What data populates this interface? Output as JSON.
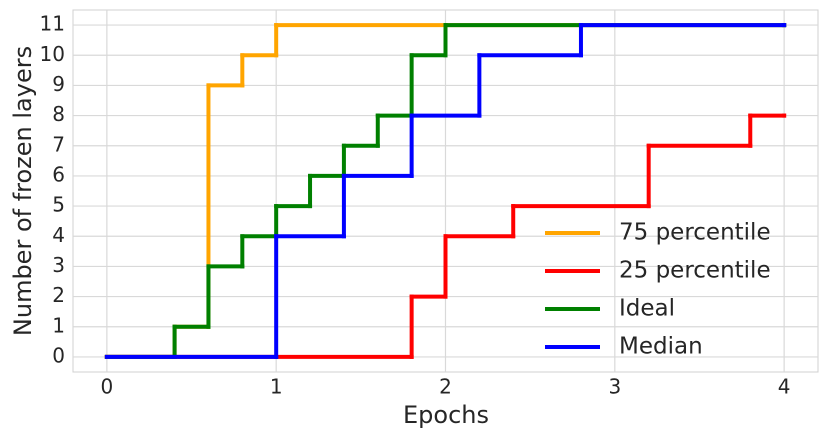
{
  "chart_data": {
    "type": "line",
    "step": "post",
    "xlabel": "Epochs",
    "ylabel": "Number of frozen layers",
    "xlim": [
      -0.2,
      4.2
    ],
    "ylim": [
      -0.5,
      11.5
    ],
    "xticks": [
      0,
      1,
      2,
      3,
      4
    ],
    "yticks": [
      0,
      1,
      2,
      3,
      4,
      5,
      6,
      7,
      8,
      9,
      10,
      11
    ],
    "grid": true,
    "legend": "lower right",
    "series": [
      {
        "name": "75 percentile",
        "color": "#ffa500",
        "x": [
          0,
          0.4,
          0.6,
          0.8,
          1,
          4
        ],
        "values": [
          0,
          1,
          9,
          10,
          11,
          11
        ]
      },
      {
        "name": "25 percentile",
        "color": "#ff0000",
        "x": [
          0,
          1.8,
          2,
          2.4,
          3.2,
          3.8,
          4
        ],
        "values": [
          0,
          2,
          4,
          5,
          7,
          8,
          8
        ]
      },
      {
        "name": "Ideal",
        "color": "#008000",
        "x": [
          0,
          0.4,
          0.6,
          0.8,
          1,
          1.2,
          1.4,
          1.6,
          1.8,
          2,
          4
        ],
        "values": [
          0,
          1,
          3,
          4,
          5,
          6,
          7,
          8,
          10,
          11,
          11
        ]
      },
      {
        "name": "Median",
        "color": "#0000ff",
        "x": [
          0,
          1,
          1.4,
          1.8,
          2.2,
          2.8,
          4
        ],
        "values": [
          0,
          4,
          6,
          8,
          10,
          11,
          11
        ]
      }
    ]
  }
}
